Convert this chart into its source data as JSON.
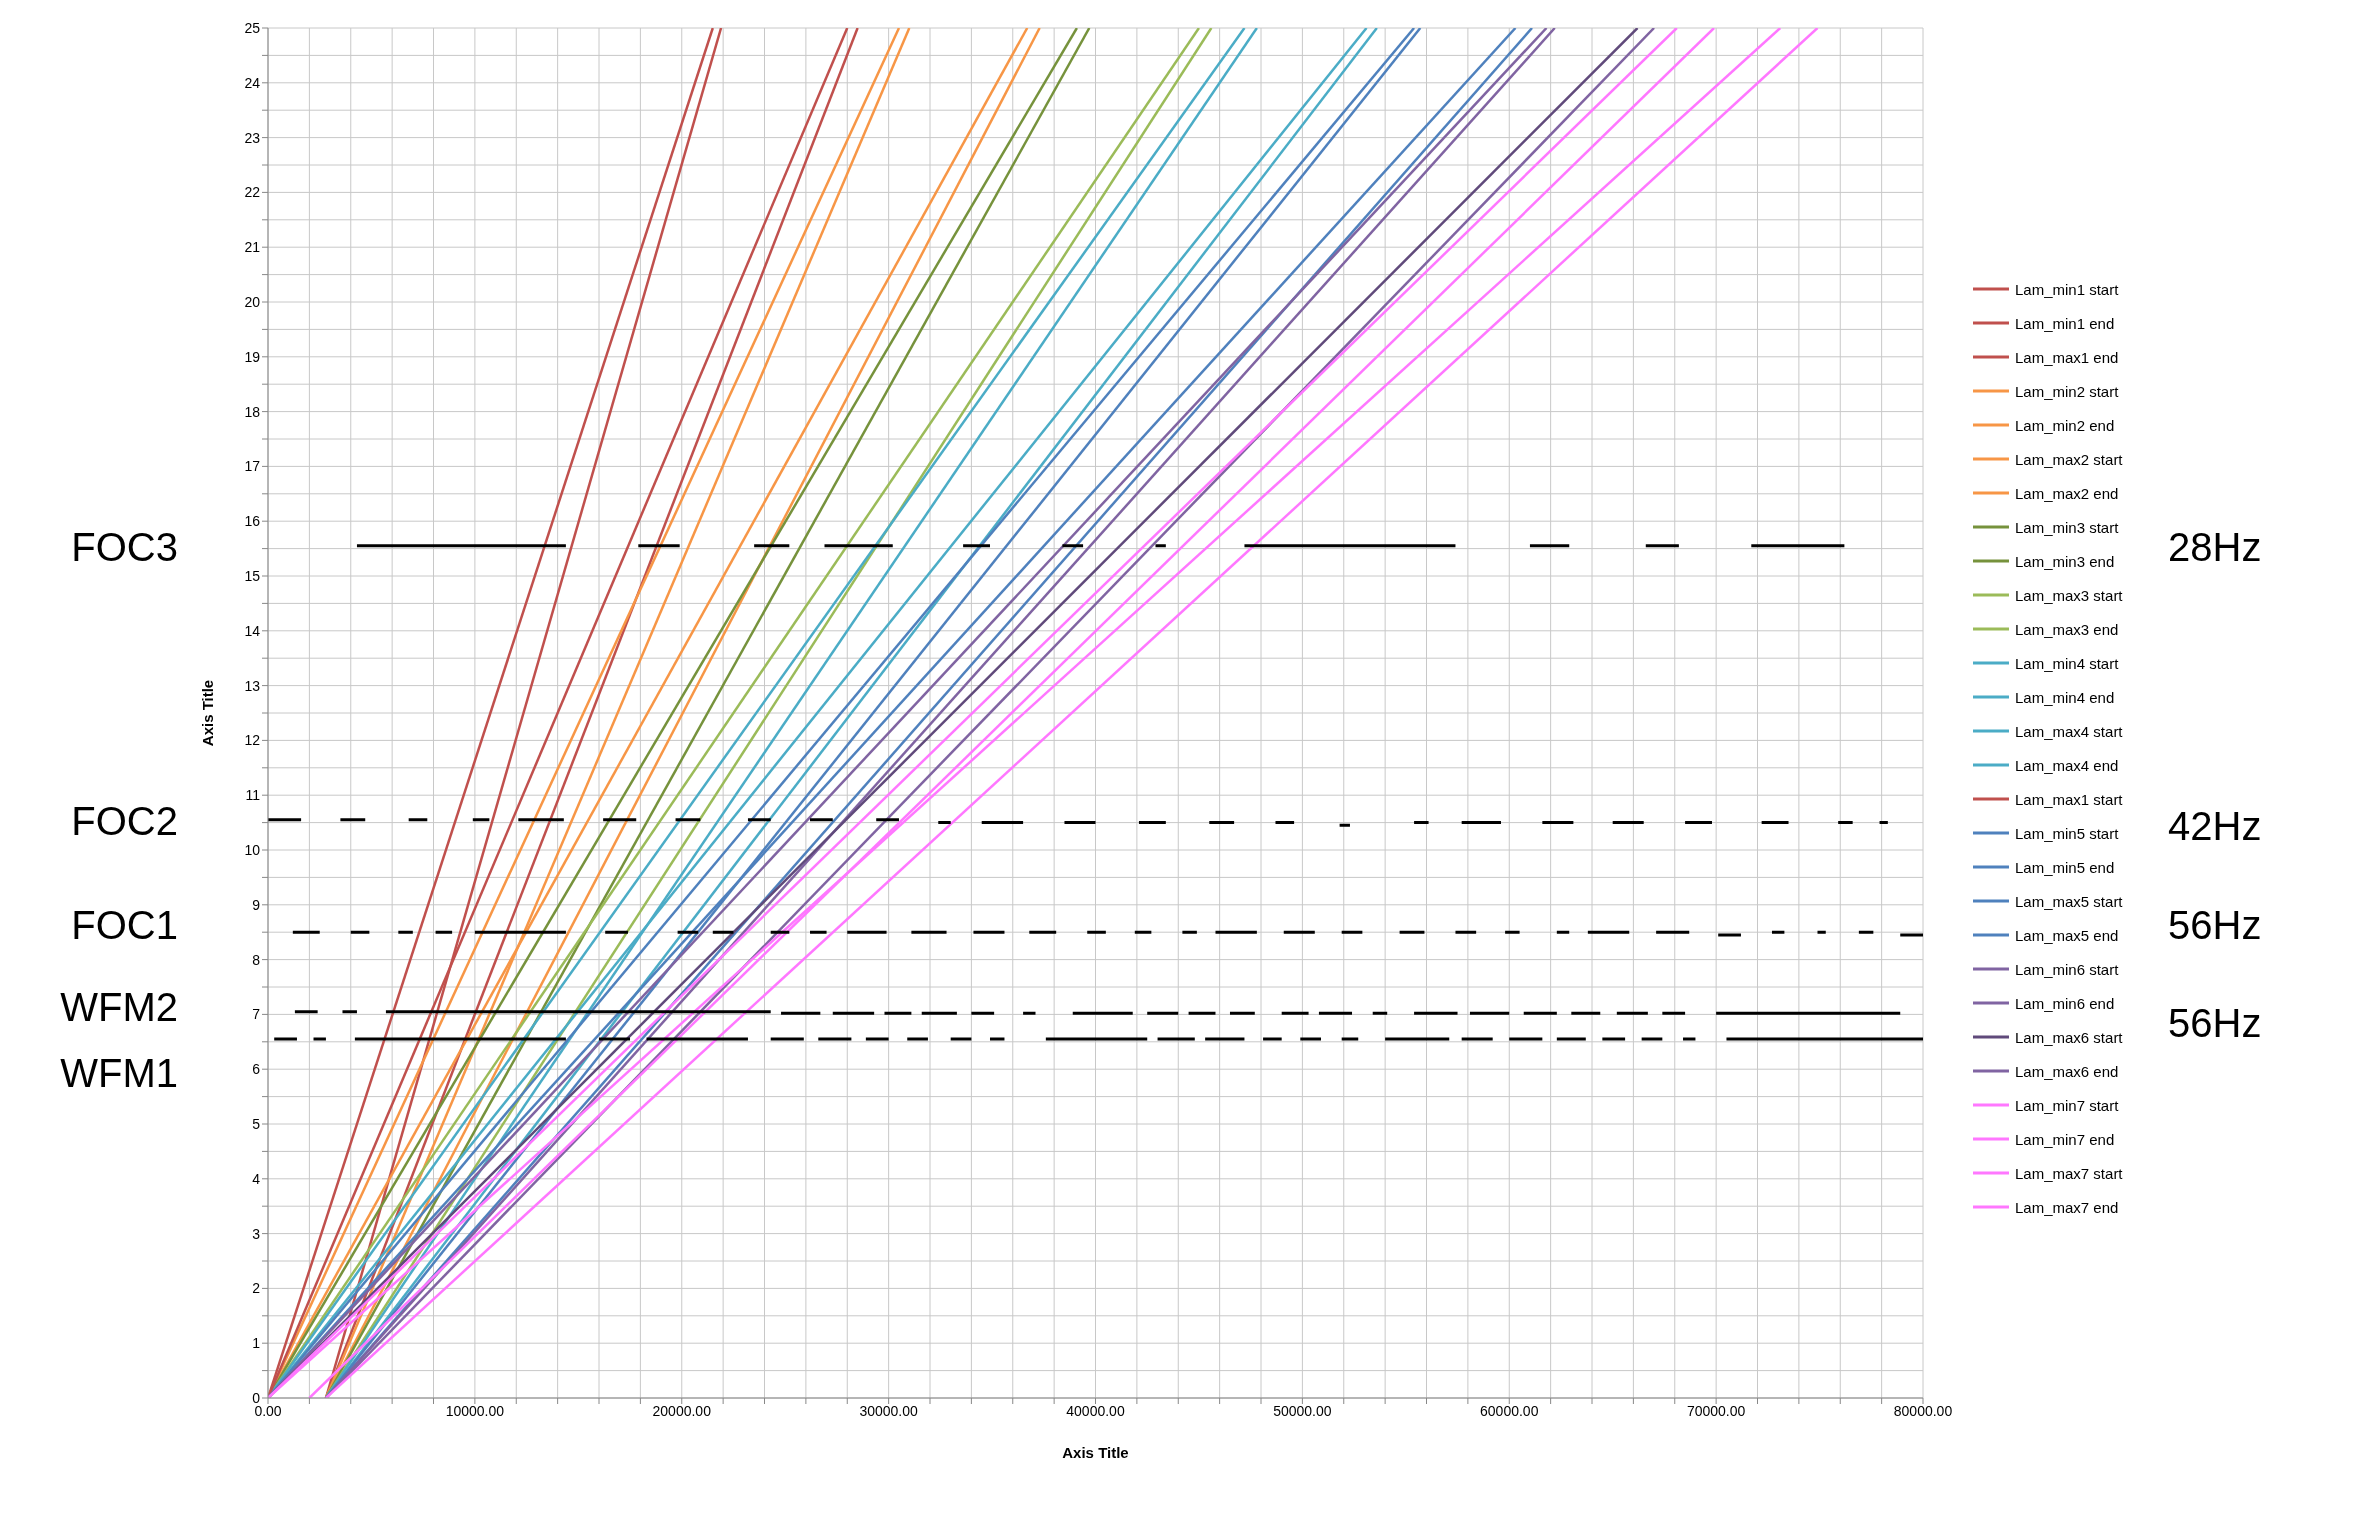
{
  "chart_data": {
    "type": "line",
    "xlabel": "Axis Title",
    "ylabel": "Axis Title",
    "xlim": [
      0,
      80000
    ],
    "ylim": [
      0,
      25
    ],
    "xticks": [
      {
        "value": 0,
        "label": "0.00"
      },
      {
        "value": 2000,
        "label": null
      },
      {
        "value": 4000,
        "label": null
      },
      {
        "value": 6000,
        "label": null
      },
      {
        "value": 8000,
        "label": null
      },
      {
        "value": 10000,
        "label": "10000.00"
      },
      {
        "value": 12000,
        "label": null
      },
      {
        "value": 14000,
        "label": null
      },
      {
        "value": 16000,
        "label": null
      },
      {
        "value": 18000,
        "label": null
      },
      {
        "value": 20000,
        "label": "20000.00"
      },
      {
        "value": 22000,
        "label": null
      },
      {
        "value": 24000,
        "label": null
      },
      {
        "value": 26000,
        "label": null
      },
      {
        "value": 28000,
        "label": null
      },
      {
        "value": 30000,
        "label": "30000.00"
      },
      {
        "value": 32000,
        "label": null
      },
      {
        "value": 34000,
        "label": null
      },
      {
        "value": 36000,
        "label": null
      },
      {
        "value": 38000,
        "label": null
      },
      {
        "value": 40000,
        "label": "40000.00"
      },
      {
        "value": 42000,
        "label": null
      },
      {
        "value": 44000,
        "label": null
      },
      {
        "value": 46000,
        "label": null
      },
      {
        "value": 48000,
        "label": null
      },
      {
        "value": 50000,
        "label": "50000.00"
      },
      {
        "value": 52000,
        "label": null
      },
      {
        "value": 54000,
        "label": null
      },
      {
        "value": 56000,
        "label": null
      },
      {
        "value": 58000,
        "label": null
      },
      {
        "value": 60000,
        "label": "60000.00"
      },
      {
        "value": 62000,
        "label": null
      },
      {
        "value": 64000,
        "label": null
      },
      {
        "value": 66000,
        "label": null
      },
      {
        "value": 68000,
        "label": null
      },
      {
        "value": 70000,
        "label": "70000.00"
      },
      {
        "value": 72000,
        "label": null
      },
      {
        "value": 74000,
        "label": null
      },
      {
        "value": 76000,
        "label": null
      },
      {
        "value": 78000,
        "label": null
      },
      {
        "value": 80000,
        "label": "80000.00"
      }
    ],
    "yticks": [
      0,
      {
        "value": 0.5,
        "label": null
      },
      1,
      {
        "value": 1.5,
        "label": null
      },
      2,
      {
        "value": 2.5,
        "label": null
      },
      3,
      {
        "value": 3.5,
        "label": null
      },
      4,
      {
        "value": 4.5,
        "label": null
      },
      5,
      {
        "value": 5.5,
        "label": null
      },
      6,
      {
        "value": 6.5,
        "label": null
      },
      7,
      {
        "value": 7.5,
        "label": null
      },
      8,
      {
        "value": 8.5,
        "label": null
      },
      9,
      {
        "value": 9.5,
        "label": null
      },
      10,
      {
        "value": 10.5,
        "label": null
      },
      11,
      {
        "value": 11.5,
        "label": null
      },
      12,
      {
        "value": 12.5,
        "label": null
      },
      13,
      {
        "value": 13.5,
        "label": null
      },
      14,
      {
        "value": 14.5,
        "label": null
      },
      15,
      {
        "value": 15.5,
        "label": null
      },
      16,
      {
        "value": 16.5,
        "label": null
      },
      17,
      {
        "value": 17.5,
        "label": null
      },
      18,
      {
        "value": 18.5,
        "label": null
      },
      19,
      {
        "value": 19.5,
        "label": null
      },
      20,
      {
        "value": 20.5,
        "label": null
      },
      21,
      {
        "value": 21.5,
        "label": null
      },
      22,
      {
        "value": 22.5,
        "label": null
      },
      23,
      {
        "value": 23.5,
        "label": null
      },
      24,
      {
        "value": 24.5,
        "label": null
      },
      25
    ],
    "grid": true,
    "legend": "right",
    "marker": "none",
    "line_style": "solid",
    "annotations": [
      "FOC3",
      "28Hz",
      "FOC2",
      "42Hz",
      "FOC1",
      "56Hz",
      "WFM2",
      "56Hz",
      "WFM1"
    ],
    "series": [
      {
        "name": "Lam_min1 start",
        "color": "#c0504d",
        "x": [
          0,
          21500
        ],
        "values": [
          0,
          25
        ]
      },
      {
        "name": "Lam_min1 end",
        "color": "#c0504d",
        "x": [
          2800,
          21900
        ],
        "values": [
          0,
          25
        ]
      },
      {
        "name": "Lam_max1 end",
        "color": "#c0504d",
        "x": [
          2800,
          28500
        ],
        "values": [
          0,
          25
        ]
      },
      {
        "name": "Lam_min2 start",
        "color": "#f79646",
        "x": [
          0,
          30500
        ],
        "values": [
          0,
          25
        ]
      },
      {
        "name": "Lam_min2 end",
        "color": "#f79646",
        "x": [
          2800,
          31000
        ],
        "values": [
          0,
          25
        ]
      },
      {
        "name": "Lam_max2 start",
        "color": "#f79646",
        "x": [
          0,
          36700
        ],
        "values": [
          0,
          25
        ]
      },
      {
        "name": "Lam_max2 end",
        "color": "#f79646",
        "x": [
          2800,
          37300
        ],
        "values": [
          0,
          25
        ]
      },
      {
        "name": "Lam_min3 start",
        "color": "#76923c",
        "x": [
          0,
          39100
        ],
        "values": [
          0,
          25
        ]
      },
      {
        "name": "Lam_min3 end",
        "color": "#76923c",
        "x": [
          2800,
          39700
        ],
        "values": [
          0,
          25
        ]
      },
      {
        "name": "Lam_max3 start",
        "color": "#9bbb59",
        "x": [
          0,
          45000
        ],
        "values": [
          0,
          25
        ]
      },
      {
        "name": "Lam_max3 end",
        "color": "#9bbb59",
        "x": [
          2800,
          45600
        ],
        "values": [
          0,
          25
        ]
      },
      {
        "name": "Lam_min4 start",
        "color": "#4bacc6",
        "x": [
          0,
          47200
        ],
        "values": [
          0,
          25
        ]
      },
      {
        "name": "Lam_min4 end",
        "color": "#4bacc6",
        "x": [
          2800,
          47800
        ],
        "values": [
          0,
          25
        ]
      },
      {
        "name": "Lam_max4 start",
        "color": "#4bacc6",
        "x": [
          0,
          53100
        ],
        "values": [
          0,
          25
        ]
      },
      {
        "name": "Lam_max4 end",
        "color": "#4bacc6",
        "x": [
          2800,
          53600
        ],
        "values": [
          0,
          25
        ]
      },
      {
        "name": "Lam_max1 start",
        "color": "#c0504d",
        "x": [
          0,
          28000
        ],
        "values": [
          0,
          25
        ]
      },
      {
        "name": "Lam_min5 start",
        "color": "#4f81bd",
        "x": [
          0,
          55400
        ],
        "values": [
          0,
          25
        ]
      },
      {
        "name": "Lam_min5 end",
        "color": "#4f81bd",
        "x": [
          2800,
          55700
        ],
        "values": [
          0,
          25
        ]
      },
      {
        "name": "Lam_max5 start",
        "color": "#4f81bd",
        "x": [
          0,
          60300
        ],
        "values": [
          0,
          25
        ]
      },
      {
        "name": "Lam_max5 end",
        "color": "#4f81bd",
        "x": [
          2800,
          61100
        ],
        "values": [
          0,
          25
        ]
      },
      {
        "name": "Lam_min6 start",
        "color": "#8064a2",
        "x": [
          0,
          61800
        ],
        "values": [
          0,
          25
        ]
      },
      {
        "name": "Lam_min6 end",
        "color": "#8064a2",
        "x": [
          2800,
          62200
        ],
        "values": [
          0,
          25
        ]
      },
      {
        "name": "Lam_max6 start",
        "color": "#604a7b",
        "x": [
          0,
          66200
        ],
        "values": [
          0,
          25
        ]
      },
      {
        "name": "Lam_max6 end",
        "color": "#8064a2",
        "x": [
          2800,
          67000
        ],
        "values": [
          0,
          25
        ]
      },
      {
        "name": "Lam_min7 start",
        "color": "#ff77ff",
        "x": [
          0,
          68100
        ],
        "values": [
          0,
          25
        ]
      },
      {
        "name": "Lam_min7 end",
        "color": "#ff77ff",
        "x": [
          2000,
          69900
        ],
        "values": [
          0,
          25
        ]
      },
      {
        "name": "Lam_max7 start",
        "color": "#ff77ff",
        "x": [
          0,
          73100
        ],
        "values": [
          0,
          25
        ]
      },
      {
        "name": "Lam_max7 end",
        "color": "#ff77ff",
        "x": [
          2800,
          74900
        ],
        "values": [
          0,
          25
        ]
      },
      {
        "color": "#000000",
        "x": [
          4300,
          14400,
          16000,
          17900,
          19900,
          21000,
          23500,
          25200,
          26000,
          26900,
          30200,
          32000,
          33600,
          34900,
          36000,
          38400,
          39400,
          41000,
          42900,
          43400,
          45000,
          47200,
          57400,
          59000,
          61000,
          62900,
          64000,
          66600,
          68200,
          70000,
          71700,
          76200
        ],
        "values": [
          15.55,
          15.55,
          null,
          15.55,
          15.55,
          null,
          15.55,
          15.55,
          null,
          15.55,
          15.55,
          null,
          15.55,
          15.55,
          null,
          15.55,
          15.55,
          null,
          15.55,
          15.55,
          null,
          15.55,
          15.55,
          null,
          15.55,
          15.55,
          null,
          15.55,
          15.55,
          null,
          15.55,
          15.55
        ]
      },
      {
        "color": "#000000",
        "x": [
          0,
          1600,
          2500,
          3500,
          4700,
          5800,
          6800,
          7700,
          8800,
          9900,
          10700,
          11400,
          12100,
          14300,
          15200,
          16200,
          17800,
          18800,
          19700,
          20900,
          22000,
          23200,
          24300,
          25200,
          26200,
          27300,
          28400,
          29400,
          30500,
          31400,
          32400,
          33000,
          33700,
          34500,
          36500,
          37500,
          38500,
          40000,
          41000,
          42100,
          43400,
          44400,
          45500,
          46700,
          47700,
          48700,
          49600,
          50700,
          51800,
          52300,
          53800,
          55400,
          56100,
          56900,
          57700,
          59600,
          60600,
          61600,
          63100,
          64000,
          65000,
          66500,
          67500,
          68500,
          69800,
          71000,
          72200,
          73500,
          74700,
          75900,
          76600,
          77200,
          77900,
          78300
        ],
        "values": [
          10.55,
          10.55,
          null,
          10.55,
          10.55,
          null,
          10.55,
          10.55,
          null,
          10.55,
          10.55,
          null,
          10.55,
          10.55,
          null,
          10.55,
          10.55,
          null,
          10.55,
          10.55,
          null,
          10.55,
          10.55,
          null,
          10.55,
          10.55,
          null,
          10.55,
          10.55,
          null,
          10.5,
          10.5,
          null,
          10.5,
          10.5,
          null,
          10.5,
          10.5,
          null,
          10.5,
          10.5,
          null,
          10.5,
          10.5,
          null,
          10.5,
          10.5,
          null,
          10.45,
          10.45,
          null,
          10.5,
          10.5,
          null,
          10.5,
          10.5,
          null,
          10.5,
          10.5,
          null,
          10.5,
          10.5,
          null,
          10.5,
          10.5,
          null,
          10.5,
          10.5,
          null,
          10.5,
          10.5,
          null,
          10.5,
          10.5
        ]
      },
      {
        "color": "#000000",
        "x": [
          1200,
          2500,
          3200,
          4000,
          4900,
          5600,
          6300,
          7000,
          7600,
          8100,
          8900,
          9500,
          10000,
          14400,
          15300,
          16300,
          17400,
          18600,
          19800,
          20800,
          21100,
          21500,
          22500,
          23400,
          24300,
          25200,
          25700,
          26200,
          27000,
          27500,
          28000,
          29900,
          30500,
          31100,
          32800,
          33400,
          34100,
          35600,
          36200,
          36800,
          38100,
          38800,
          39600,
          40500,
          41200,
          41900,
          42700,
          43400,
          44200,
          44900,
          45300,
          45800,
          47800,
          48400,
          49100,
          50600,
          51200,
          51900,
          52900,
          53800,
          54700,
          55900,
          56700,
          57400,
          58400,
          59100,
          59800,
          60500,
          61400,
          62300,
          62900,
          63300,
          63800,
          65800,
          66400,
          67100,
          68700,
          69400,
          70100,
          71200,
          71900,
          72700,
          73300,
          74100,
          74900,
          75300,
          76100,
          76900,
          77600,
          78200,
          78900,
          80000
        ],
        "values": [
          8.5,
          8.5,
          null,
          8.5,
          8.5,
          null,
          8.5,
          8.5,
          null,
          8.5,
          8.5,
          null,
          8.5,
          8.5,
          null,
          8.5,
          8.5,
          null,
          8.5,
          8.5,
          null,
          8.5,
          8.5,
          null,
          8.5,
          8.5,
          null,
          8.5,
          8.5,
          null,
          8.5,
          8.5,
          null,
          8.5,
          8.5,
          null,
          8.5,
          8.5,
          null,
          8.5,
          8.5,
          null,
          8.5,
          8.5,
          null,
          8.5,
          8.5,
          null,
          8.5,
          8.5,
          null,
          8.5,
          8.5,
          null,
          8.5,
          8.5,
          null,
          8.5,
          8.5,
          null,
          8.5,
          8.5,
          null,
          8.5,
          8.5,
          null,
          8.5,
          8.5,
          null,
          8.5,
          8.5,
          null,
          8.5,
          8.5,
          null,
          8.5,
          8.5,
          null,
          8.45,
          8.45,
          null,
          8.5,
          8.5,
          null,
          8.5,
          8.5,
          null,
          8.5,
          8.5,
          null,
          8.45,
          8.45
        ]
      },
      {
        "color": "#000000",
        "x": [
          1300,
          2400,
          3000,
          3600,
          4300,
          5000,
          5700,
          24300,
          24500,
          24800,
          26700,
          27000,
          27300,
          29300,
          29600,
          29800,
          31100,
          31300,
          31600,
          33300,
          33600,
          34000,
          35100,
          35700,
          36500,
          37100,
          38000,
          38900,
          41800,
          42100,
          42500,
          44000,
          44200,
          44500,
          45800,
          46200,
          46500,
          47700,
          48300,
          49000,
          50300,
          50500,
          50800,
          52400,
          52900,
          53400,
          54100,
          54700,
          55400,
          57500,
          57800,
          58100,
          60000,
          60400,
          60700,
          62300,
          62600,
          63000,
          64400,
          64800,
          65200,
          66700,
          67000,
          67400,
          68500,
          69300,
          70000,
          78900
        ],
        "values": [
          7.05,
          7.05,
          null,
          7.05,
          7.05,
          null,
          7.05,
          7.05,
          null,
          7.02,
          7.02,
          null,
          7.02,
          7.02,
          null,
          7.02,
          7.02,
          null,
          7.02,
          7.02,
          null,
          7.02,
          7.02,
          null,
          7.02,
          7.02,
          null,
          7.02,
          7.02,
          null,
          7.02,
          7.02,
          null,
          7.02,
          7.02,
          null,
          7.02,
          7.02,
          null,
          7.02,
          7.02,
          null,
          7.02,
          7.02,
          null,
          7.02,
          7.02,
          null,
          7.02,
          7.02,
          null,
          7.02,
          7.02,
          null,
          7.02,
          7.02,
          null,
          7.02,
          7.02,
          null,
          7.02,
          7.02,
          null,
          7.02,
          7.02,
          null,
          7.02,
          7.02
        ]
      },
      {
        "color": "#000000",
        "x": [
          300,
          1400,
          1800,
          2200,
          2800,
          3500,
          4200,
          14400,
          15200,
          16000,
          17500,
          17900,
          18300,
          23200,
          23700,
          24300,
          25900,
          26300,
          26600,
          28200,
          28500,
          28900,
          30000,
          30500,
          30900,
          31900,
          32400,
          33000,
          34000,
          34500,
          34900,
          35600,
          36600,
          37600,
          42500,
          42700,
          43000,
          44800,
          45000,
          45300,
          47200,
          47600,
          48100,
          49000,
          49500,
          49900,
          50900,
          51400,
          51900,
          52700,
          53300,
          54000,
          57100,
          57400,
          57700,
          59200,
          59600,
          60000,
          61600,
          62000,
          62300,
          63700,
          64100,
          64500,
          65600,
          66000,
          66400,
          67400,
          67900,
          68400,
          69000,
          69800,
          70500,
          80000
        ],
        "values": [
          6.55,
          6.55,
          null,
          6.55,
          6.55,
          null,
          6.55,
          6.55,
          null,
          6.55,
          6.55,
          null,
          6.55,
          6.55,
          null,
          6.55,
          6.55,
          null,
          6.55,
          6.55,
          null,
          6.55,
          6.55,
          null,
          6.55,
          6.55,
          null,
          6.55,
          6.55,
          null,
          6.55,
          6.55,
          null,
          6.55,
          6.55,
          null,
          6.55,
          6.55,
          null,
          6.55,
          6.55,
          null,
          6.55,
          6.55,
          null,
          6.55,
          6.55,
          null,
          6.55,
          6.55,
          null,
          6.55,
          6.55,
          null,
          6.55,
          6.55,
          null,
          6.55,
          6.55,
          null,
          6.55,
          6.55,
          null,
          6.55,
          6.55,
          null,
          6.55,
          6.55,
          null,
          6.55,
          6.55,
          null,
          6.55,
          6.55
        ]
      }
    ]
  }
}
